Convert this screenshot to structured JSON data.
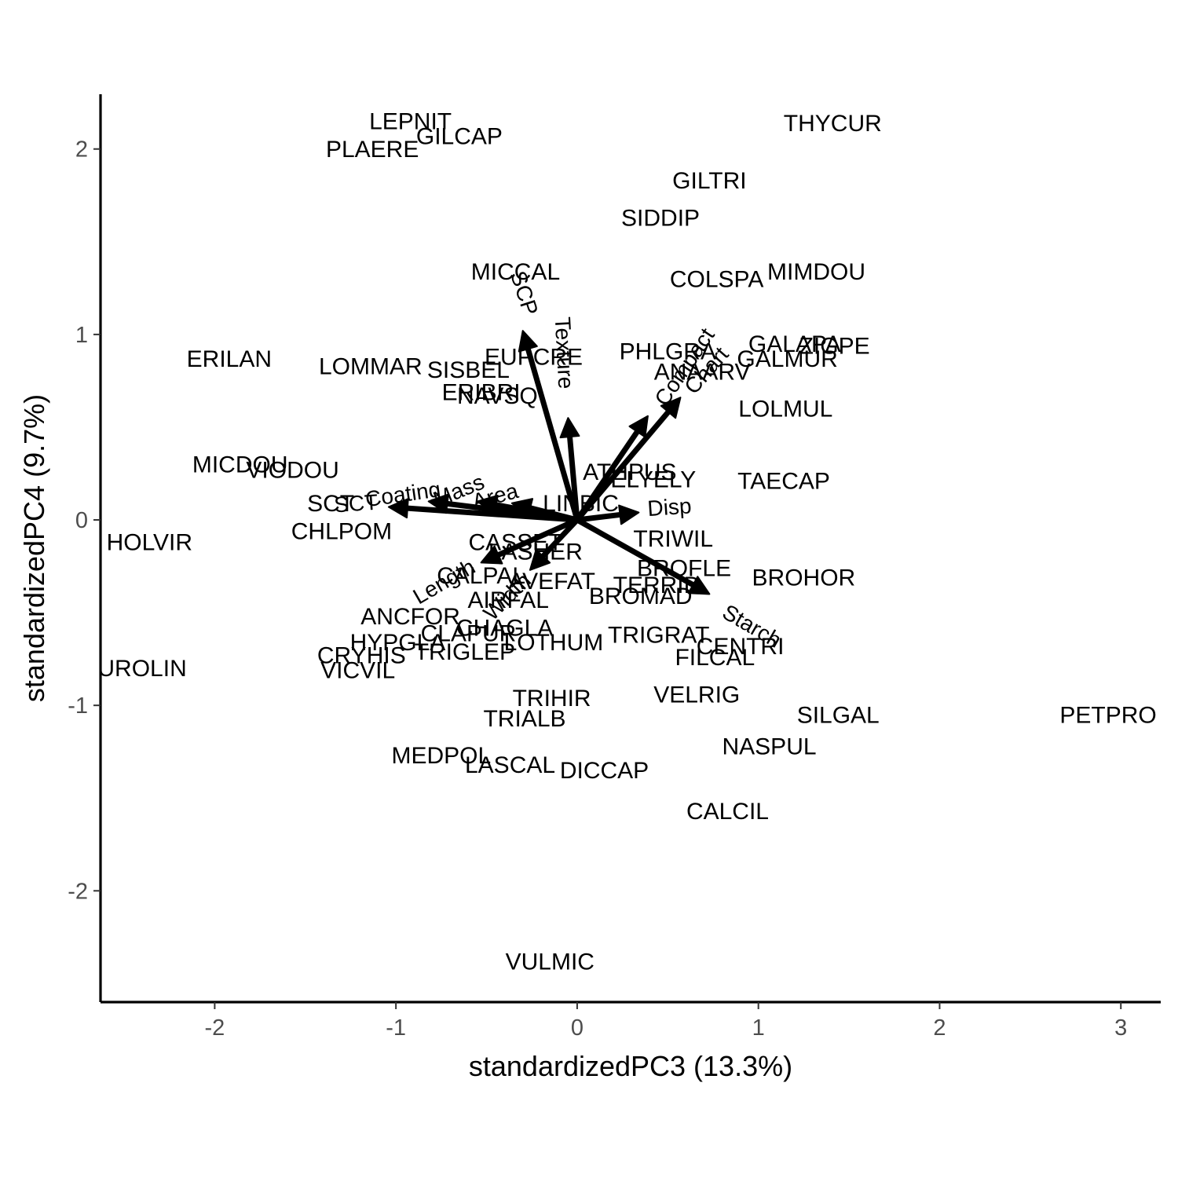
{
  "chart_data": {
    "type": "scatter",
    "subtype": "biplot",
    "title": "",
    "xlabel": "standardizedPC3 (13.3%)",
    "ylabel": "standardizedPC4 (9.7%)",
    "xlim": [
      -2.63,
      3.22
    ],
    "ylim": [
      -2.6,
      2.38
    ],
    "xticks": [
      -2,
      -1,
      0,
      1,
      2,
      3
    ],
    "yticks": [
      -2,
      -1,
      0,
      1,
      2
    ],
    "xtick_labels": [
      "-2",
      "-1",
      "0",
      "1",
      "2",
      "3"
    ],
    "ytick_labels": [
      "-2",
      "-1",
      "0",
      "1",
      "2"
    ],
    "grid": false,
    "legend": "none",
    "colors": {
      "points": "#000000",
      "arrows": "#000000",
      "ticks": "#4d4d4d"
    },
    "species": [
      {
        "label": "LEPNIT",
        "x": -0.92,
        "y": 2.14
      },
      {
        "label": "GILCAP",
        "x": -0.65,
        "y": 2.06
      },
      {
        "label": "PLAERE",
        "x": -1.13,
        "y": 1.99
      },
      {
        "label": "THYCUR",
        "x": 1.41,
        "y": 2.13
      },
      {
        "label": "GILTRI",
        "x": 0.73,
        "y": 1.82
      },
      {
        "label": "SIDDIP",
        "x": 0.46,
        "y": 1.62
      },
      {
        "label": "MICCAL",
        "x": -0.34,
        "y": 1.33
      },
      {
        "label": "MIMDOU",
        "x": 1.32,
        "y": 1.33
      },
      {
        "label": "COLSPA",
        "x": 0.77,
        "y": 1.29
      },
      {
        "label": "ZIGPE",
        "x": 1.42,
        "y": 0.93
      },
      {
        "label": "GALAPA",
        "x": 1.2,
        "y": 0.94
      },
      {
        "label": "PHLGRA",
        "x": 0.5,
        "y": 0.9
      },
      {
        "label": "EUPCRE",
        "x": -0.24,
        "y": 0.87
      },
      {
        "label": "GALMUR",
        "x": 1.16,
        "y": 0.86
      },
      {
        "label": "ERILAN",
        "x": -1.92,
        "y": 0.86
      },
      {
        "label": "ANAARV",
        "x": 0.69,
        "y": 0.79
      },
      {
        "label": "LOMMAR",
        "x": -1.14,
        "y": 0.82
      },
      {
        "label": "SISBEL",
        "x": -0.6,
        "y": 0.8
      },
      {
        "label": "ERIBRI",
        "x": -0.53,
        "y": 0.68
      },
      {
        "label": "NAVSQ",
        "x": -0.44,
        "y": 0.66
      },
      {
        "label": "LOLMUL",
        "x": 1.15,
        "y": 0.59
      },
      {
        "label": "ATHPUS",
        "x": 0.29,
        "y": 0.25
      },
      {
        "label": "ELYELY",
        "x": 0.42,
        "y": 0.21
      },
      {
        "label": "TAECAP",
        "x": 1.14,
        "y": 0.2
      },
      {
        "label": "MICDOU",
        "x": -1.86,
        "y": 0.29
      },
      {
        "label": "VIODOU",
        "x": -1.57,
        "y": 0.26
      },
      {
        "label": "SCT",
        "x": -1.36,
        "y": 0.08
      },
      {
        "label": "LINBIC",
        "x": 0.02,
        "y": 0.08
      },
      {
        "label": "CHLPOM",
        "x": -1.3,
        "y": -0.07
      },
      {
        "label": "HOLVIR",
        "x": -2.36,
        "y": -0.13
      },
      {
        "label": "TRIWIL",
        "x": 0.53,
        "y": -0.11
      },
      {
        "label": "CASSET",
        "x": -0.34,
        "y": -0.13
      },
      {
        "label": "LASHER",
        "x": -0.23,
        "y": -0.18
      },
      {
        "label": "BROFLE",
        "x": 0.59,
        "y": -0.27
      },
      {
        "label": "BROHOR",
        "x": 1.25,
        "y": -0.32
      },
      {
        "label": "CALPAL",
        "x": -0.53,
        "y": -0.31
      },
      {
        "label": "AVEFAT",
        "x": -0.14,
        "y": -0.34
      },
      {
        "label": "TERRID",
        "x": 0.44,
        "y": -0.36
      },
      {
        "label": "BROMAD",
        "x": 0.35,
        "y": -0.42
      },
      {
        "label": "AIRFAL",
        "x": -0.38,
        "y": -0.44
      },
      {
        "label": "ANCFOR",
        "x": -0.92,
        "y": -0.53
      },
      {
        "label": "CLAPUR",
        "x": -0.6,
        "y": -0.62
      },
      {
        "label": "CHAGLA",
        "x": -0.4,
        "y": -0.59
      },
      {
        "label": "TRIGRAT",
        "x": 0.45,
        "y": -0.63
      },
      {
        "label": "CENTRI",
        "x": 0.9,
        "y": -0.69
      },
      {
        "label": "HYPGLA",
        "x": -0.99,
        "y": -0.67
      },
      {
        "label": "LOTHUM",
        "x": -0.13,
        "y": -0.67
      },
      {
        "label": "CRYHIS",
        "x": -1.19,
        "y": -0.74
      },
      {
        "label": "TRIGLEP",
        "x": -0.62,
        "y": -0.72
      },
      {
        "label": "FILCAL",
        "x": 0.76,
        "y": -0.75
      },
      {
        "label": "UROLIN",
        "x": -2.4,
        "y": -0.81
      },
      {
        "label": "VICVIL",
        "x": -1.21,
        "y": -0.82
      },
      {
        "label": "VELRIG",
        "x": 0.66,
        "y": -0.95
      },
      {
        "label": "TRIHIR",
        "x": -0.14,
        "y": -0.97
      },
      {
        "label": "TRIALB",
        "x": -0.29,
        "y": -1.08
      },
      {
        "label": "SILGAL",
        "x": 1.44,
        "y": -1.06
      },
      {
        "label": "PETPRO",
        "x": 2.93,
        "y": -1.06
      },
      {
        "label": "NASPUL",
        "x": 1.06,
        "y": -1.23
      },
      {
        "label": "MEDPOL",
        "x": -0.75,
        "y": -1.28
      },
      {
        "label": "LASCAL",
        "x": -0.37,
        "y": -1.33
      },
      {
        "label": "DICCAP",
        "x": 0.15,
        "y": -1.36
      },
      {
        "label": "CALCIL",
        "x": 0.83,
        "y": -1.58
      },
      {
        "label": "VULMIC",
        "x": -0.15,
        "y": -2.39
      }
    ],
    "traits": [
      {
        "label": "SCP",
        "x": -0.3,
        "y": 1.02,
        "label_x": -0.3,
        "label_y": 1.22,
        "angle": 72
      },
      {
        "label": "Texture",
        "x": -0.05,
        "y": 0.55,
        "label_x": -0.08,
        "label_y": 0.9,
        "angle": 87
      },
      {
        "label": "Compact",
        "x": 0.39,
        "y": 0.56,
        "label_x": 0.6,
        "label_y": 0.82,
        "angle": -56
      },
      {
        "label": "Chart",
        "x": 0.57,
        "y": 0.66,
        "label_x": 0.72,
        "label_y": 0.8,
        "angle": -49
      },
      {
        "label": "Disp",
        "x": 0.34,
        "y": 0.04,
        "label_x": 0.51,
        "label_y": 0.06,
        "angle": -4
      },
      {
        "label": "Starch",
        "x": 0.73,
        "y": -0.4,
        "label_x": 0.96,
        "label_y": -0.58,
        "angle": 30
      },
      {
        "label": "SCT",
        "x": -1.04,
        "y": 0.07,
        "label_x": -1.22,
        "label_y": 0.08,
        "angle": -4
      },
      {
        "label": "Coating",
        "x": -0.82,
        "y": 0.1,
        "label_x": -0.96,
        "label_y": 0.13,
        "angle": -8
      },
      {
        "label": "Mass",
        "x": -0.55,
        "y": 0.1,
        "label_x": -0.65,
        "label_y": 0.15,
        "angle": -22
      },
      {
        "label": "Area",
        "x": -0.36,
        "y": 0.09,
        "label_x": -0.45,
        "label_y": 0.12,
        "angle": -15
      },
      {
        "label": "Length",
        "x": -0.53,
        "y": -0.23,
        "label_x": -0.73,
        "label_y": -0.34,
        "angle": -30
      },
      {
        "label": "Width",
        "x": -0.26,
        "y": -0.27,
        "label_x": -0.38,
        "label_y": -0.42,
        "angle": -45
      }
    ]
  }
}
